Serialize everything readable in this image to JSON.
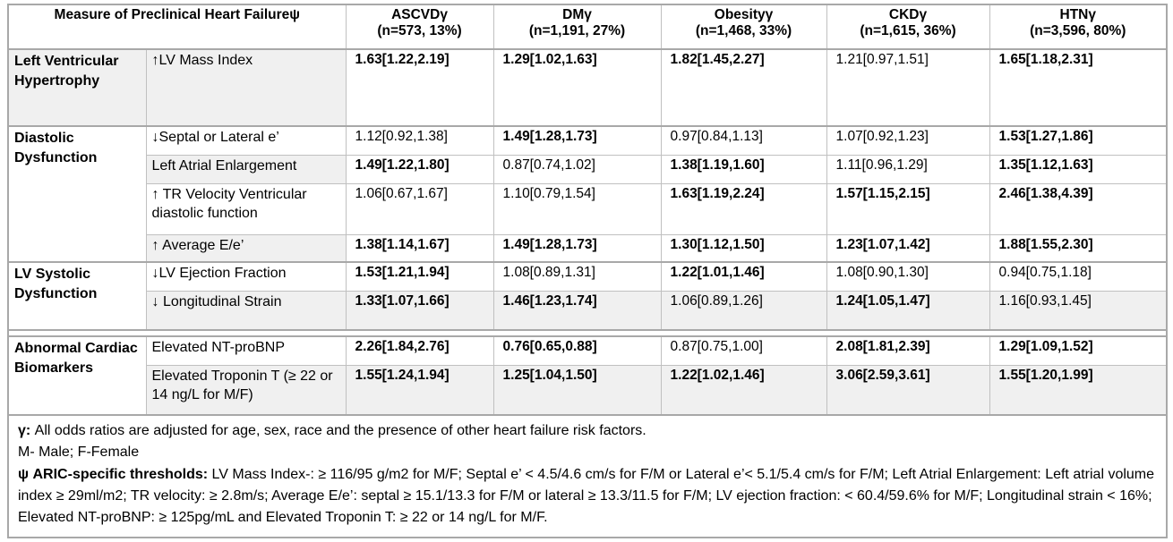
{
  "table": {
    "title": "Measure of Preclinical Heart Failureψ",
    "columns": [
      {
        "label": "ASCVDγ",
        "sub": "(n=573, 13%)"
      },
      {
        "label": "DMγ",
        "sub": "(n=1,191, 27%)"
      },
      {
        "label": "Obesityγ",
        "sub": "(n=1,468, 33%)"
      },
      {
        "label": "CKDγ",
        "sub": "(n=1,615, 36%)"
      },
      {
        "label": "HTNγ",
        "sub": "(n=3,596, 80%)"
      }
    ],
    "groups": [
      {
        "label": "Left Ventricular Hypertrophy",
        "shaded": true,
        "spacer_before": false,
        "rows": [
          {
            "id": "lvmass",
            "measure": "↑LV Mass Index",
            "measure_shaded": true,
            "data_shaded": false,
            "values": [
              "1.63[1.22,2.19]",
              "1.29[1.02,1.63]",
              "1.82[1.45,2.27]",
              "1.21[0.97,1.51]",
              "1.65[1.18,2.31]"
            ],
            "bold": [
              true,
              true,
              true,
              false,
              true
            ]
          }
        ]
      },
      {
        "label": "Diastolic Dysfunction",
        "shaded": false,
        "spacer_before": false,
        "rows": [
          {
            "id": "septal",
            "measure": "↓Septal or Lateral e’",
            "measure_shaded": false,
            "data_shaded": false,
            "values": [
              "1.12[0.92,1.38]",
              "1.49[1.28,1.73]",
              "0.97[0.84,1.13]",
              "1.07[0.92,1.23]",
              "1.53[1.27,1.86]"
            ],
            "bold": [
              false,
              true,
              false,
              false,
              true
            ]
          },
          {
            "id": "lae",
            "measure": "Left Atrial Enlargement",
            "measure_shaded": true,
            "data_shaded": false,
            "values": [
              "1.49[1.22,1.80]",
              "0.87[0.74,1.02]",
              "1.38[1.19,1.60]",
              "1.11[0.96,1.29]",
              "1.35[1.12,1.63]"
            ],
            "bold": [
              true,
              false,
              true,
              false,
              true
            ]
          },
          {
            "id": "trvel",
            "measure": "↑ TR Velocity Ventricular diastolic function",
            "measure_shaded": false,
            "data_shaded": false,
            "values": [
              "1.06[0.67,1.67]",
              "1.10[0.79,1.54]",
              "1.63[1.19,2.24]",
              "1.57[1.15,2.15]",
              "2.46[1.38,4.39]"
            ],
            "bold": [
              false,
              false,
              true,
              true,
              true
            ]
          },
          {
            "id": "avgee",
            "measure": "↑ Average E/e’",
            "measure_shaded": true,
            "data_shaded": false,
            "values": [
              "1.38[1.14,1.67]",
              "1.49[1.28,1.73]",
              "1.30[1.12,1.50]",
              "1.23[1.07,1.42]",
              "1.88[1.55,2.30]"
            ],
            "bold": [
              true,
              true,
              true,
              true,
              true
            ]
          }
        ]
      },
      {
        "label": "LV Systolic Dysfunction",
        "shaded": false,
        "spacer_before": false,
        "rows": [
          {
            "id": "lvef",
            "measure": "↓LV Ejection Fraction",
            "measure_shaded": false,
            "data_shaded": false,
            "values": [
              "1.53[1.21,1.94]",
              "1.08[0.89,1.31]",
              "1.22[1.01,1.46]",
              "1.08[0.90,1.30]",
              "0.94[0.75,1.18]"
            ],
            "bold": [
              true,
              false,
              true,
              false,
              false
            ]
          },
          {
            "id": "strain",
            "measure": "↓ Longitudinal Strain",
            "measure_shaded": true,
            "data_shaded": true,
            "values": [
              "1.33[1.07,1.66]",
              "1.46[1.23,1.74]",
              "1.06[0.89,1.26]",
              "1.24[1.05,1.47]",
              "1.16[0.93,1.45]"
            ],
            "bold": [
              true,
              true,
              false,
              true,
              false
            ]
          }
        ]
      },
      {
        "label": "Abnormal Cardiac Biomarkers",
        "shaded": false,
        "spacer_before": true,
        "rows": [
          {
            "id": "ntprobnp",
            "measure": "Elevated NT-proBNP",
            "measure_shaded": false,
            "data_shaded": false,
            "values": [
              "2.26[1.84,2.76]",
              "0.76[0.65,0.88]",
              "0.87[0.75,1.00]",
              "2.08[1.81,2.39]",
              "1.29[1.09,1.52]"
            ],
            "bold": [
              true,
              true,
              false,
              true,
              true
            ]
          },
          {
            "id": "troponin",
            "measure": "Elevated Troponin T (≥ 22 or 14 ng/L for M/F)",
            "measure_shaded": true,
            "data_shaded": true,
            "values": [
              "1.55[1.24,1.94]",
              "1.25[1.04,1.50]",
              "1.22[1.02,1.46]",
              "3.06[2.59,3.61]",
              "1.55[1.20,1.99]"
            ],
            "bold": [
              true,
              true,
              true,
              true,
              true
            ]
          }
        ]
      }
    ]
  },
  "footnotes": [
    {
      "lead": "γ:",
      "text": " All odds ratios are adjusted for age, sex, race and the presence of other heart failure risk factors."
    },
    {
      "lead": "",
      "text": "M- Male; F-Female"
    },
    {
      "lead": "ψ ARIC-specific thresholds:",
      "text": " LV Mass Index-: ≥ 116/95 g/m2 for M/F; Septal e’ < 4.5/4.6 cm/s for F/M or Lateral e’< 5.1/5.4 cm/s for F/M; Left Atrial Enlargement: Left atrial volume index ≥ 29ml/m2; TR velocity: ≥ 2.8m/s; Average E/e’: septal ≥ 15.1/13.3 for F/M or lateral ≥ 13.3/11.5 for F/M;  LV ejection fraction: < 60.4/59.6% for M/F; Longitudinal strain < 16%; Elevated NT-proBNP: ≥ 125pg/mL and Elevated Troponin T: ≥ 22 or 14 ng/L for M/F."
    }
  ],
  "colors": {
    "shade": "#f0f0f0",
    "grid": "#c0c0c0",
    "grid_strong": "#a8a8a8",
    "text": "#000000"
  }
}
